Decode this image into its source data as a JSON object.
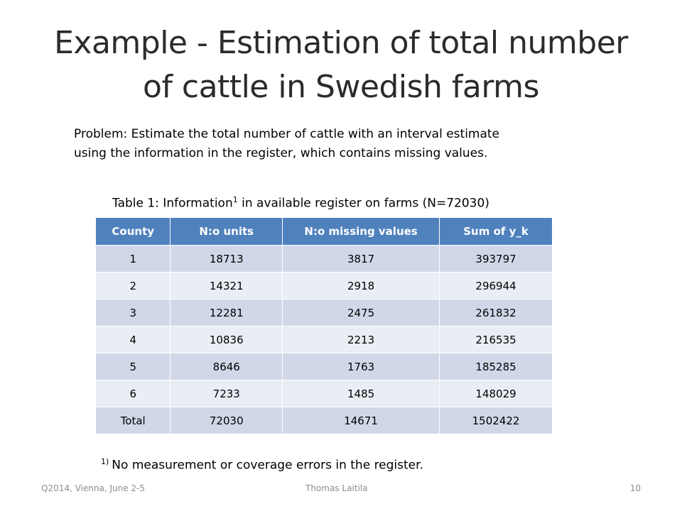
{
  "slide": {
    "title_line1": "Example - Estimation of total number",
    "title_line2": "of cattle in Swedish farms",
    "problem_line1": "Problem: Estimate the total number of cattle with an interval estimate",
    "problem_line2": "using the information in the register, which contains missing values.",
    "caption_before": "Table 1: Information",
    "caption_sup": "1",
    "caption_after": " in available register on farms (N=72030)",
    "footnote_sup": "1)",
    "footnote_text": "No measurement or coverage errors in the register."
  },
  "table": {
    "headers": [
      "County",
      "N:o units",
      "N:o missing values",
      "Sum of y_k"
    ],
    "rows": [
      [
        "1",
        "18713",
        "3817",
        "393797"
      ],
      [
        "2",
        "14321",
        "2918",
        "296944"
      ],
      [
        "3",
        "12281",
        "2475",
        "261832"
      ],
      [
        "4",
        "10836",
        "2213",
        "216535"
      ],
      [
        "5",
        "8646",
        "1763",
        "185285"
      ],
      [
        "6",
        "7233",
        "1485",
        "148029"
      ],
      [
        "Total",
        "72030",
        "14671",
        "1502422"
      ]
    ]
  },
  "footer": {
    "left": "Q2014, Vienna, June 2-5",
    "center": "Thomas Laitila",
    "page_number": "10"
  },
  "colors": {
    "header_fill": "#4f81bd",
    "row_band_dark": "#d0d8e8",
    "row_band_light": "#e9edf4",
    "footer_text": "#8c8c8c"
  }
}
